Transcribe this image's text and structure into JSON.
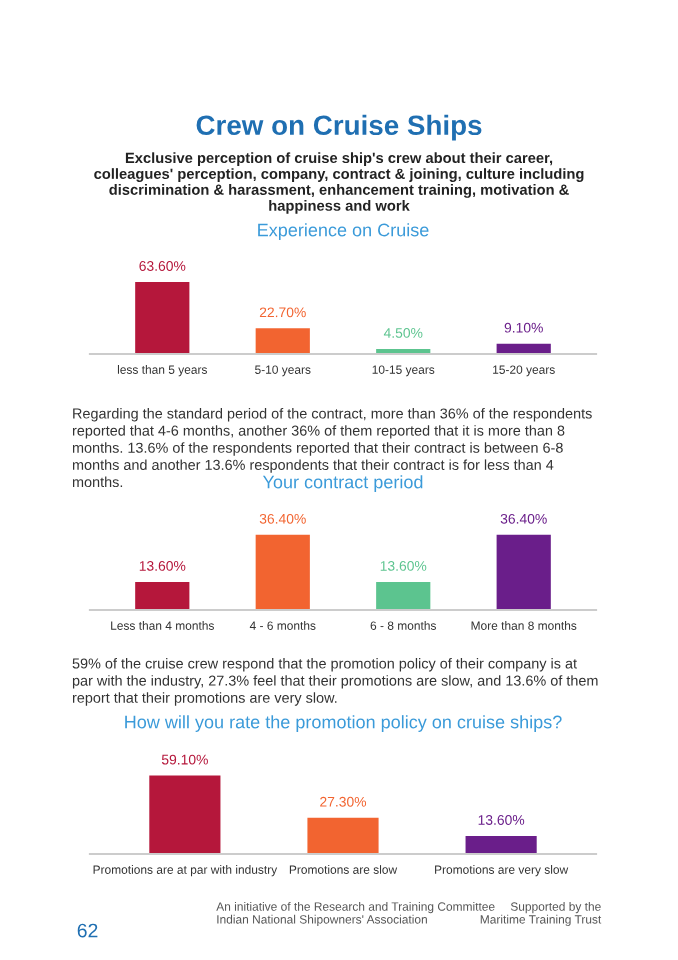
{
  "chart_data": [
    {
      "type": "other",
      "title": "Crew on Cruise Ships",
      "subtitle": "Exclusive perception of cruise ship's crew about their career, colleagues' perception, company, contract & joining, culture including discrimination & harassment, enhancement training, motivation & happiness and work"
    },
    {
      "type": "bar",
      "title": "Experience on Cruise",
      "categories": [
        "less than 5 years",
        "5-10 years",
        "10-15 years",
        "15-20 years"
      ],
      "values": [
        63.6,
        22.7,
        4.5,
        9.1
      ],
      "value_labels": [
        "63.60%",
        "22.70%",
        "4.50%",
        "9.10%"
      ],
      "colors": [
        "#b5173b",
        "#f26430",
        "#5cc48f",
        "#6a1e8a"
      ]
    },
    {
      "type": "other",
      "annotations": [
        "Regarding the standard period of the contract, more than 36% of the respondents reported that 4-6 months, another 36% of them reported that it is more than 8 months. 13.6% of the respondents reported that their contract is between 6-8 months and another 13.6% respondents that their contract is for less than 4 months."
      ]
    },
    {
      "type": "bar",
      "title": "Your contract period",
      "categories": [
        "Less than 4 months",
        "4 - 6 months",
        "6 - 8 months",
        "More than 8 months"
      ],
      "values": [
        13.6,
        36.4,
        13.6,
        36.4
      ],
      "value_labels": [
        "13.60%",
        "36.40%",
        "13.60%",
        "36.40%"
      ],
      "colors": [
        "#b5173b",
        "#f26430",
        "#5cc48f",
        "#6a1e8a"
      ]
    },
    {
      "type": "other",
      "annotations": [
        "59% of the cruise crew respond that the promotion policy of their company is at par with the industry, 27.3% feel that their promotions are slow, and 13.6% of them report that their promotions are very slow."
      ]
    },
    {
      "type": "bar",
      "title": "How will you rate the promotion policy on cruise ships?",
      "categories": [
        "Promotions are at par with industry",
        "Promotions are slow",
        "Promotions are very slow"
      ],
      "values": [
        59.1,
        27.3,
        13.6
      ],
      "value_labels": [
        "59.10%",
        "27.30%",
        "13.60%"
      ],
      "colors": [
        "#b5173b",
        "#f26430",
        "#6a1e8a"
      ]
    },
    {
      "type": "other",
      "annotations": [
        "62",
        "An initiative of the Research and Training Committee\nIndian National Shipowners' Association",
        "Supported by the\nMaritime Training Trust"
      ]
    }
  ]
}
